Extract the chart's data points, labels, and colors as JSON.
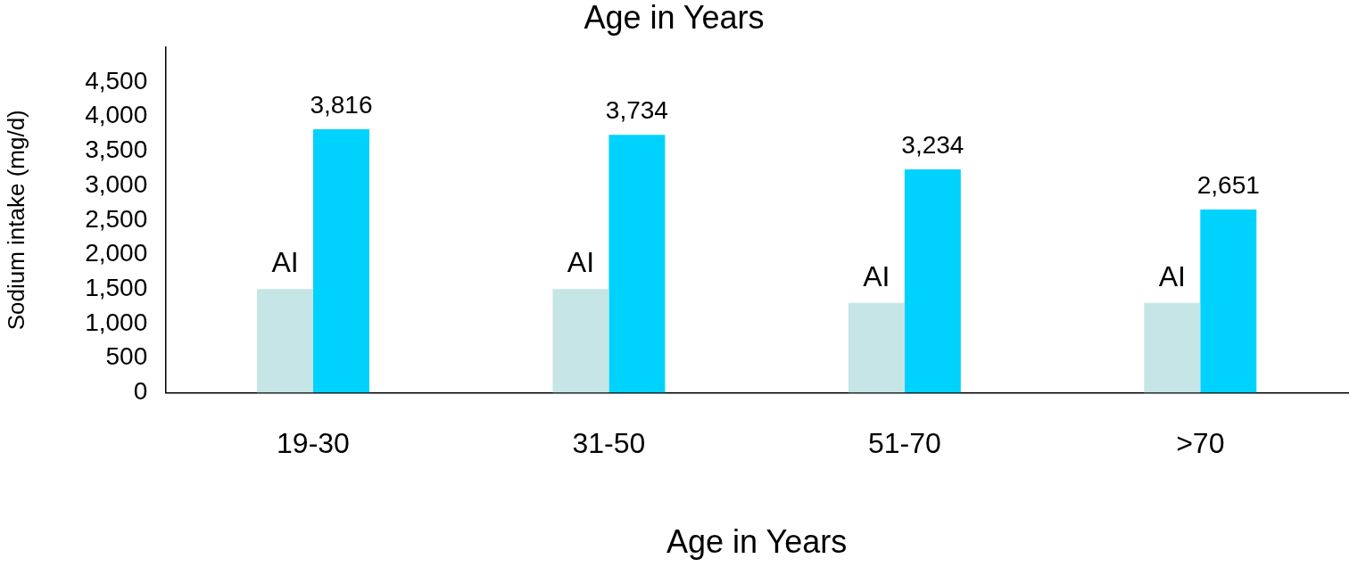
{
  "chart_data": {
    "type": "bar",
    "title": "Age in Years",
    "xlabel": "Age in Years",
    "ylabel": "Sodium intake (mg/d)",
    "categories": [
      "19-30",
      "31-50",
      "51-70",
      ">70"
    ],
    "series": [
      {
        "color": "#c5e5e6",
        "values": [
          1500,
          1500,
          1300,
          1300
        ],
        "value_labels": [
          "AI",
          "AI",
          "AI",
          "AI"
        ]
      },
      {
        "color": "#00d2fe",
        "values": [
          3816,
          3734,
          3234,
          2651
        ],
        "value_labels": [
          "3,816",
          "3,734",
          "3,234",
          "2,651"
        ]
      }
    ],
    "ylim": [
      0,
      5000
    ],
    "yticks": [
      0,
      500,
      {
        "value": 1000,
        "label": "1,000"
      },
      {
        "value": 1500,
        "label": "1,500"
      },
      {
        "value": 2000,
        "label": "2,000"
      },
      {
        "value": 2500,
        "label": "2,500"
      },
      {
        "value": 3000,
        "label": "3,000"
      },
      {
        "value": 3500,
        "label": "3,500"
      },
      {
        "value": 4000,
        "label": "4,000"
      },
      {
        "value": 4500,
        "label": "4,500"
      }
    ],
    "grid": false,
    "legend": false
  }
}
